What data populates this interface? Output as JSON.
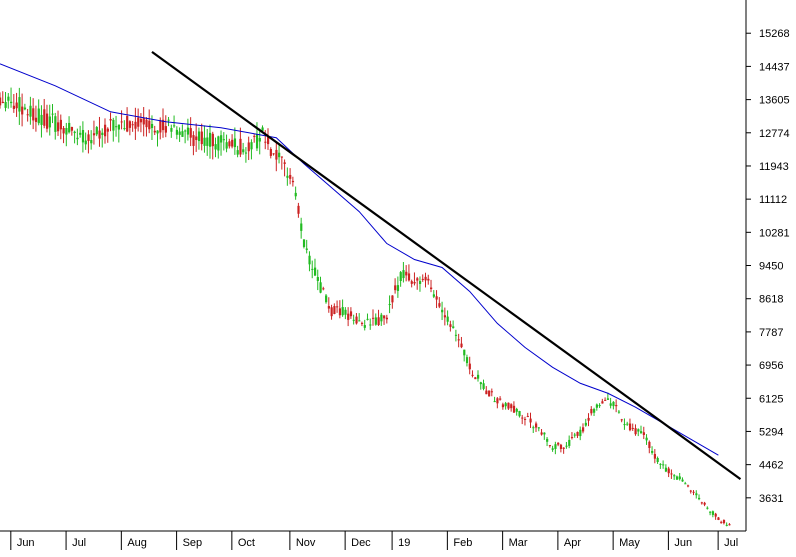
{
  "chart_data": {
    "type": "candlestick",
    "title": "",
    "xlabel": "",
    "ylabel": "",
    "ylim": [
      2800,
      16100
    ],
    "y_ticks": [
      15268,
      14437,
      13605,
      12774,
      11943,
      11112,
      10281,
      9450,
      8618,
      7787,
      6956,
      6125,
      5294,
      4462,
      3631
    ],
    "x_labels": [
      "Jun",
      "Jul",
      "Aug",
      "Sep",
      "Oct",
      "Nov",
      "Dec",
      "19",
      "Feb",
      "Mar",
      "Apr",
      "May",
      "Jun",
      "Jul"
    ],
    "x_range": [
      0,
      270
    ],
    "x_label_positions": [
      5,
      25,
      45,
      65,
      85,
      106,
      126,
      143,
      163,
      183,
      203,
      223,
      243,
      261
    ],
    "price_path": [
      [
        0,
        13700
      ],
      [
        10,
        13350
      ],
      [
        20,
        13000
      ],
      [
        30,
        12650
      ],
      [
        40,
        12900
      ],
      [
        50,
        13050
      ],
      [
        60,
        12950
      ],
      [
        70,
        12650
      ],
      [
        80,
        12500
      ],
      [
        90,
        12400
      ],
      [
        95,
        12700
      ],
      [
        100,
        12150
      ],
      [
        106,
        11600
      ],
      [
        110,
        10000
      ],
      [
        115,
        9050
      ],
      [
        120,
        8300
      ],
      [
        125,
        8250
      ],
      [
        130,
        8050
      ],
      [
        135,
        8000
      ],
      [
        140,
        8150
      ],
      [
        143,
        8800
      ],
      [
        146,
        9300
      ],
      [
        150,
        9100
      ],
      [
        155,
        9000
      ],
      [
        160,
        8400
      ],
      [
        165,
        7800
      ],
      [
        170,
        6900
      ],
      [
        175,
        6400
      ],
      [
        180,
        6050
      ],
      [
        185,
        5900
      ],
      [
        190,
        5650
      ],
      [
        195,
        5350
      ],
      [
        200,
        4900
      ],
      [
        205,
        4950
      ],
      [
        210,
        5250
      ],
      [
        214,
        5800
      ],
      [
        218,
        6050
      ],
      [
        222,
        6000
      ],
      [
        226,
        5500
      ],
      [
        230,
        5300
      ],
      [
        234,
        5150
      ],
      [
        236,
        4750
      ],
      [
        240,
        4400
      ],
      [
        244,
        4200
      ],
      [
        248,
        4000
      ],
      [
        252,
        3700
      ],
      [
        256,
        3400
      ],
      [
        260,
        3100
      ],
      [
        264,
        2950
      ]
    ],
    "moving_average": {
      "color": "#0000cc",
      "points": [
        [
          0,
          14500
        ],
        [
          20,
          13950
        ],
        [
          40,
          13300
        ],
        [
          60,
          13050
        ],
        [
          80,
          12900
        ],
        [
          100,
          12650
        ],
        [
          110,
          12000
        ],
        [
          120,
          11400
        ],
        [
          130,
          10800
        ],
        [
          140,
          10000
        ],
        [
          150,
          9600
        ],
        [
          160,
          9400
        ],
        [
          170,
          8800
        ],
        [
          180,
          8000
        ],
        [
          190,
          7400
        ],
        [
          200,
          6900
        ],
        [
          210,
          6500
        ],
        [
          220,
          6250
        ],
        [
          230,
          5900
        ],
        [
          240,
          5500
        ],
        [
          250,
          5100
        ],
        [
          260,
          4700
        ]
      ]
    },
    "trendline": {
      "color": "#000000",
      "points": [
        [
          55,
          14800
        ],
        [
          268,
          4100
        ]
      ]
    },
    "colors": {
      "up": "#22bb22",
      "down": "#cc2222",
      "background": "#ffffff"
    }
  }
}
